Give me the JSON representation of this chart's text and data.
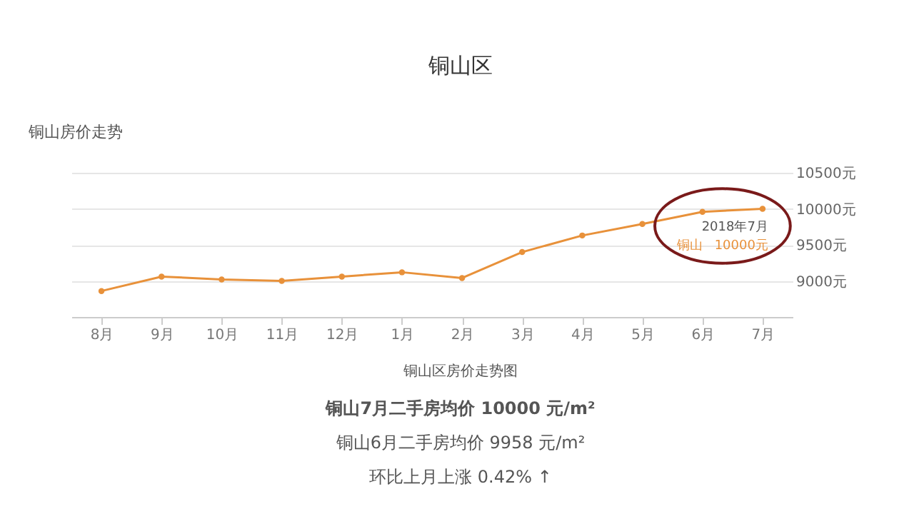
{
  "chart_data": {
    "type": "line",
    "title": "铜山区",
    "subtitle": "铜山房价走势",
    "categories": [
      "8月",
      "9月",
      "10月",
      "11月",
      "12月",
      "1月",
      "2月",
      "3月",
      "4月",
      "5月",
      "6月",
      "7月"
    ],
    "series": [
      {
        "name": "铜山",
        "color": "#e8913a",
        "values": [
          8860,
          9060,
          9020,
          9000,
          9060,
          9120,
          9040,
          9400,
          9630,
          9790,
          9958,
          10000
        ]
      }
    ],
    "ylim": [
      8500,
      10500
    ],
    "yticks": [
      {
        "value": 8500,
        "label": null
      },
      {
        "value": 9000,
        "label": "9000元"
      },
      {
        "value": 9500,
        "label": "9500元"
      },
      {
        "value": 10000,
        "label": "10000元"
      },
      {
        "value": 10500,
        "label": "10500元"
      }
    ],
    "grid": "y",
    "legend": false,
    "marker": "circle",
    "line_style": "solid",
    "annotations": [
      {
        "text": "2018年7月",
        "x": "7月",
        "y": 10000
      },
      {
        "text": "10000元",
        "x": "7月",
        "y": 10000
      },
      "铜山区房价走势图",
      "铜山7月二手房均价 10000 元/m²",
      "铜山6月二手房均价 9958 元/m²",
      "环比上月上涨 0.42% ↑"
    ]
  }
}
